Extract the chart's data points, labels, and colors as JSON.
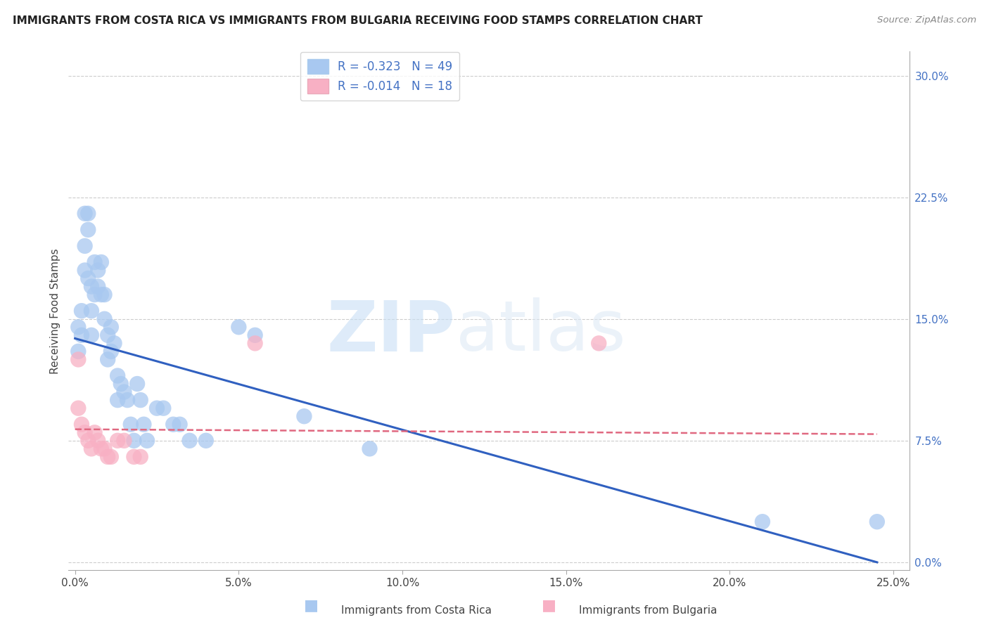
{
  "title": "IMMIGRANTS FROM COSTA RICA VS IMMIGRANTS FROM BULGARIA RECEIVING FOOD STAMPS CORRELATION CHART",
  "source": "Source: ZipAtlas.com",
  "ylabel": "Receiving Food Stamps",
  "xlabel_ticks": [
    "0.0%",
    "5.0%",
    "10.0%",
    "15.0%",
    "20.0%",
    "25.0%"
  ],
  "xlabel_vals": [
    0.0,
    0.05,
    0.1,
    0.15,
    0.2,
    0.25
  ],
  "ylabel_ticks": [
    "0.0%",
    "7.5%",
    "15.0%",
    "22.5%",
    "30.0%"
  ],
  "ylabel_vals": [
    0.0,
    0.075,
    0.15,
    0.225,
    0.3
  ],
  "xlim": [
    -0.002,
    0.255
  ],
  "ylim": [
    -0.005,
    0.315
  ],
  "costa_rica_R": "-0.323",
  "costa_rica_N": "49",
  "bulgaria_R": "-0.014",
  "bulgaria_N": "18",
  "costa_rica_color": "#a8c8f0",
  "bulgaria_color": "#f8b0c4",
  "costa_rica_line_color": "#3060c0",
  "bulgaria_line_color": "#e06880",
  "watermark_zip": "ZIP",
  "watermark_atlas": "atlas",
  "costa_rica_x": [
    0.001,
    0.001,
    0.002,
    0.002,
    0.003,
    0.003,
    0.003,
    0.004,
    0.004,
    0.004,
    0.005,
    0.005,
    0.005,
    0.006,
    0.006,
    0.007,
    0.007,
    0.008,
    0.008,
    0.009,
    0.009,
    0.01,
    0.01,
    0.011,
    0.011,
    0.012,
    0.013,
    0.013,
    0.014,
    0.015,
    0.016,
    0.017,
    0.018,
    0.019,
    0.02,
    0.021,
    0.022,
    0.025,
    0.027,
    0.03,
    0.032,
    0.035,
    0.04,
    0.05,
    0.055,
    0.07,
    0.09,
    0.21,
    0.245
  ],
  "costa_rica_y": [
    0.145,
    0.13,
    0.155,
    0.14,
    0.215,
    0.195,
    0.18,
    0.215,
    0.205,
    0.175,
    0.17,
    0.155,
    0.14,
    0.185,
    0.165,
    0.18,
    0.17,
    0.185,
    0.165,
    0.165,
    0.15,
    0.14,
    0.125,
    0.145,
    0.13,
    0.135,
    0.115,
    0.1,
    0.11,
    0.105,
    0.1,
    0.085,
    0.075,
    0.11,
    0.1,
    0.085,
    0.075,
    0.095,
    0.095,
    0.085,
    0.085,
    0.075,
    0.075,
    0.145,
    0.14,
    0.09,
    0.07,
    0.025,
    0.025
  ],
  "bulgaria_x": [
    0.001,
    0.001,
    0.002,
    0.003,
    0.004,
    0.005,
    0.006,
    0.007,
    0.008,
    0.009,
    0.01,
    0.011,
    0.013,
    0.015,
    0.018,
    0.02,
    0.055,
    0.16
  ],
  "bulgaria_y": [
    0.125,
    0.095,
    0.085,
    0.08,
    0.075,
    0.07,
    0.08,
    0.075,
    0.07,
    0.07,
    0.065,
    0.065,
    0.075,
    0.075,
    0.065,
    0.065,
    0.135,
    0.135
  ],
  "cr_line_x0": 0.0,
  "cr_line_x1": 0.245,
  "cr_line_y0": 0.138,
  "cr_line_y1": 0.0,
  "bg_line_x0": 0.0,
  "bg_line_x1": 0.245,
  "bg_line_y0": 0.082,
  "bg_line_y1": 0.079
}
